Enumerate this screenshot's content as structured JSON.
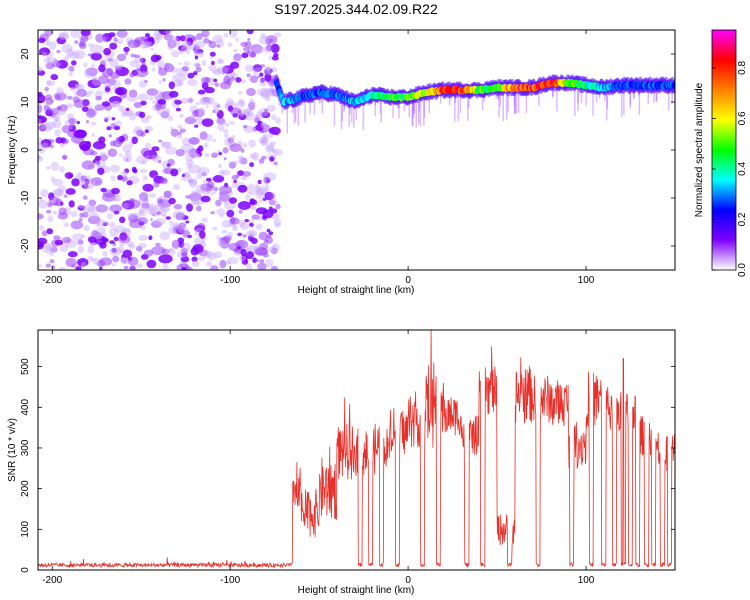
{
  "title": "S197.2025.344.02.09.R22",
  "chart_data": [
    {
      "type": "heatmap",
      "name": "spectrogram",
      "xlabel": "Height of straight line (km)",
      "ylabel": "Frequency (Hz)",
      "xlim": [
        -208,
        150
      ],
      "ylim": [
        -25,
        25
      ],
      "xticks": [
        -200,
        -100,
        0,
        100
      ],
      "yticks": [
        -20,
        -10,
        0,
        10,
        20
      ],
      "colorbar": {
        "label": "Normalized spectral amplitude",
        "range": [
          0,
          0.95
        ],
        "ticks": [
          "0.0",
          "0.2",
          "0.4",
          "0.6",
          "0.8"
        ],
        "colors": [
          "#ffffff",
          "#7f00ff",
          "#0000ff",
          "#00ffff",
          "#00ff00",
          "#ffff00",
          "#ff8000",
          "#ff0000",
          "#ff00ff"
        ]
      },
      "noise_region": {
        "x": [
          -208,
          -73
        ],
        "amplitude": 0.1
      },
      "signal_track": {
        "x": [
          -74,
          -70,
          -60,
          -50,
          -40,
          -30,
          -20,
          -10,
          0,
          10,
          20,
          30,
          40,
          50,
          60,
          70,
          80,
          90,
          100,
          110,
          120,
          130,
          140,
          150
        ],
        "freq": [
          14,
          10,
          11,
          12,
          11.5,
          10,
          11.5,
          11,
          11,
          12,
          12.5,
          12.5,
          12.5,
          13,
          13,
          13,
          14,
          14,
          13.5,
          13,
          13.5,
          13.5,
          13.5,
          13.5
        ],
        "amplitude": [
          0.25,
          0.35,
          0.3,
          0.3,
          0.3,
          0.35,
          0.45,
          0.5,
          0.55,
          0.6,
          0.85,
          0.9,
          0.55,
          0.5,
          0.9,
          0.85,
          0.95,
          0.6,
          0.45,
          0.35,
          0.3,
          0.3,
          0.3,
          0.3
        ]
      }
    },
    {
      "type": "line",
      "name": "snr",
      "xlabel": "Height of straight line (km)",
      "ylabel": "SNR (10 * v/v)",
      "xlim": [
        -208,
        150
      ],
      "ylim": [
        0,
        590
      ],
      "xticks": [
        -200,
        -100,
        0,
        100
      ],
      "yticks": [
        0,
        100,
        200,
        300,
        400,
        500
      ],
      "color": "#e8302a",
      "segments": [
        {
          "x": [
            -208,
            -65
          ],
          "level": 15,
          "noise": 10
        },
        {
          "x": [
            -65,
            -60
          ],
          "level": 200,
          "noise": 50
        },
        {
          "x": [
            -60,
            -50
          ],
          "level": 140,
          "noise": 60
        },
        {
          "x": [
            -50,
            -40
          ],
          "level": 200,
          "noise": 80
        },
        {
          "x": [
            -40,
            -30
          ],
          "level": 290,
          "noise": 70
        },
        {
          "x": [
            -30,
            -20
          ],
          "level": 290,
          "noise": 60
        },
        {
          "x": [
            -20,
            -10
          ],
          "level": 300,
          "noise": 70
        },
        {
          "x": [
            -10,
            0
          ],
          "level": 340,
          "noise": 60
        },
        {
          "x": [
            0,
            10
          ],
          "level": 370,
          "noise": 70
        },
        {
          "x": [
            10,
            20
          ],
          "level": 390,
          "noise": 90
        },
        {
          "x": [
            20,
            30
          ],
          "level": 380,
          "noise": 50
        },
        {
          "x": [
            30,
            40
          ],
          "level": 330,
          "noise": 50
        },
        {
          "x": [
            40,
            50
          ],
          "level": 440,
          "noise": 60
        },
        {
          "x": [
            50,
            60
          ],
          "level": 100,
          "noise": 40
        },
        {
          "x": [
            60,
            70
          ],
          "level": 430,
          "noise": 70
        },
        {
          "x": [
            70,
            80
          ],
          "level": 420,
          "noise": 60
        },
        {
          "x": [
            80,
            90
          ],
          "level": 410,
          "noise": 60
        },
        {
          "x": [
            90,
            100
          ],
          "level": 310,
          "noise": 60
        },
        {
          "x": [
            100,
            110
          ],
          "level": 420,
          "noise": 70
        },
        {
          "x": [
            110,
            120
          ],
          "level": 400,
          "noise": 60
        },
        {
          "x": [
            120,
            130
          ],
          "level": 390,
          "noise": 50
        },
        {
          "x": [
            130,
            140
          ],
          "level": 330,
          "noise": 50
        },
        {
          "x": [
            140,
            150
          ],
          "level": 290,
          "noise": 50
        }
      ],
      "dropouts": [
        -27,
        -21,
        -15,
        -6,
        8,
        17,
        33,
        42,
        57,
        73,
        92,
        103,
        110,
        116,
        121,
        125,
        129,
        134,
        138,
        143,
        147
      ],
      "peaks": [
        {
          "x": 13,
          "y": 590
        },
        {
          "x": 47,
          "y": 550
        },
        {
          "x": 121,
          "y": 520
        }
      ]
    }
  ]
}
